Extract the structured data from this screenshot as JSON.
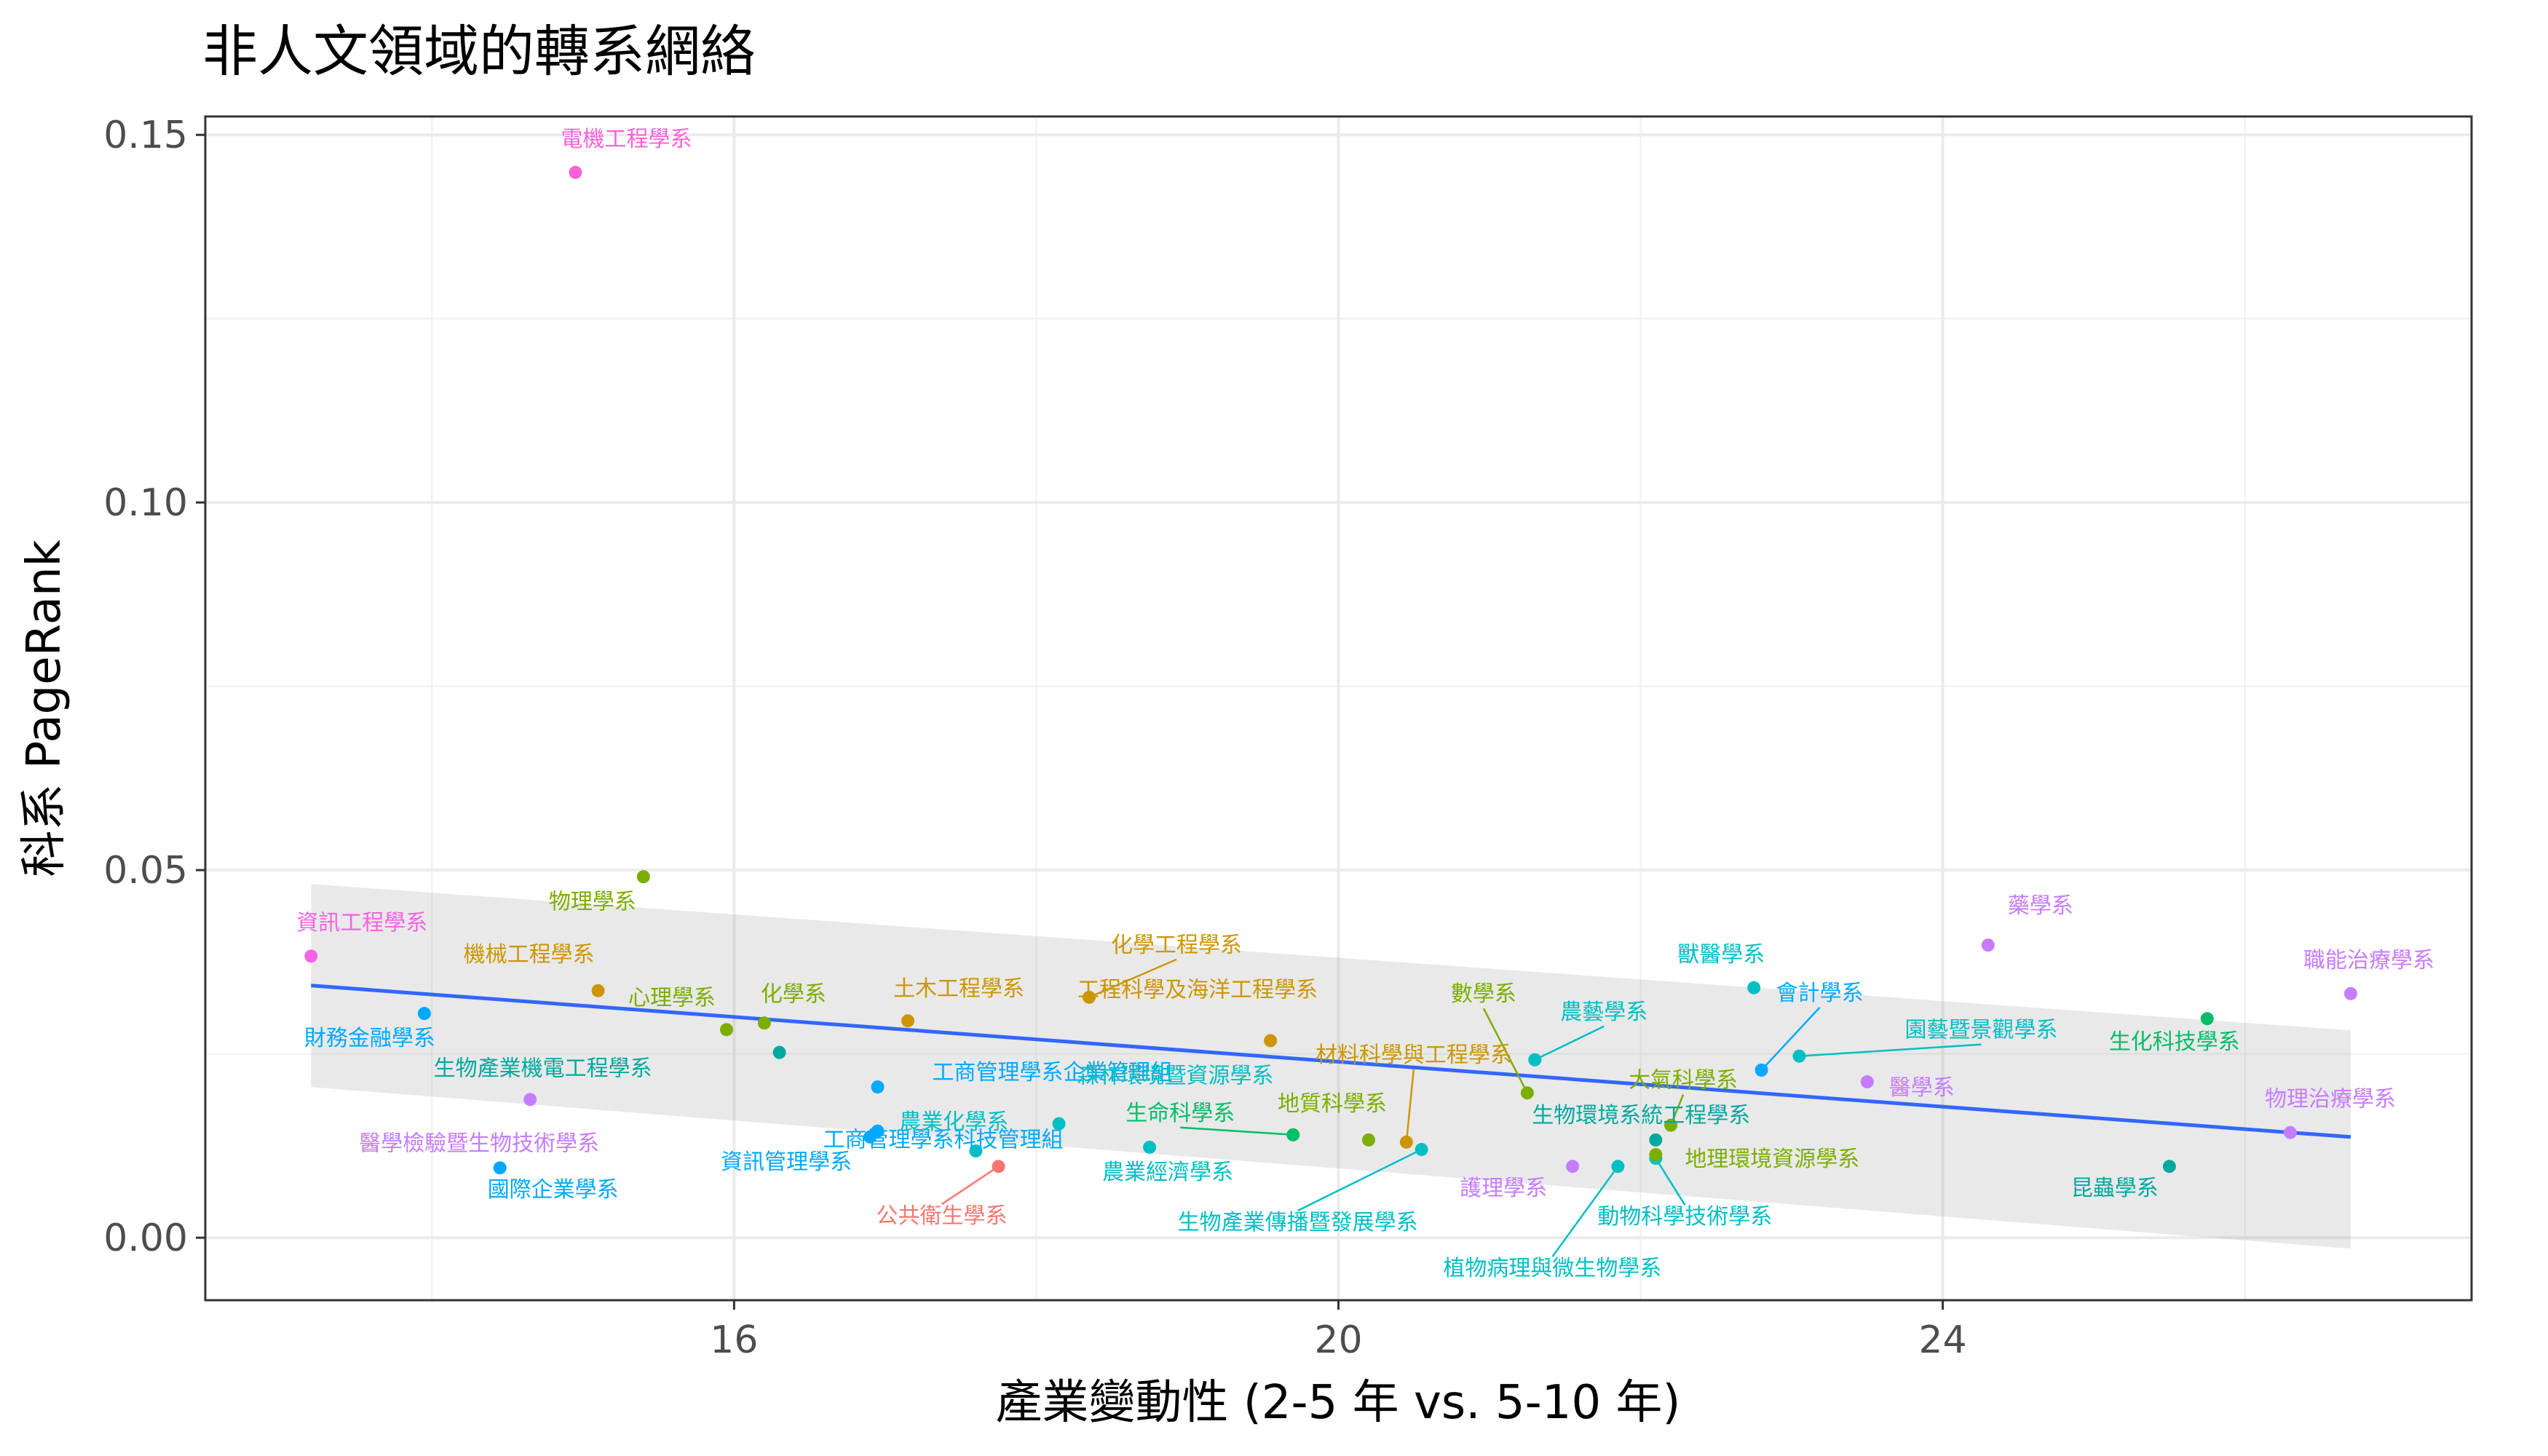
{
  "chart_data": {
    "type": "scatter",
    "title": "非人文領域的轉系網絡",
    "xlabel": "產業變動性 (2-5 年 vs. 5-10 年)",
    "ylabel": "科系 PageRank",
    "xlim": [
      12.5,
      27.5
    ],
    "ylim": [
      -0.0085,
      0.1525
    ],
    "x_ticks": [
      16,
      20,
      24
    ],
    "y_ticks": [
      0.0,
      0.05,
      0.1,
      0.15
    ],
    "x_tick_labels": [
      "16",
      "20",
      "24"
    ],
    "y_tick_labels": [
      "0.00",
      "0.05",
      "0.10",
      "0.15"
    ],
    "grid": true,
    "legend": "none",
    "trend": {
      "method": "linear",
      "x": [
        13.2,
        26.7
      ],
      "y": [
        0.0343,
        0.0137
      ],
      "band_lower": [
        0.0205,
        -0.0015
      ],
      "band_upper": [
        0.0481,
        0.0282
      ],
      "line_color": "#3366ff",
      "band_color": "#999999"
    },
    "points": [
      {
        "label": "電機工程學系",
        "x": 14.95,
        "y": 0.1449,
        "color": "#fb61d7"
      },
      {
        "label": "資訊工程學系",
        "x": 13.2,
        "y": 0.0383,
        "color": "#f564e3"
      },
      {
        "label": "物理學系",
        "x": 15.4,
        "y": 0.0491,
        "color": "#7cae00"
      },
      {
        "label": "機械工程學系",
        "x": 15.1,
        "y": 0.0336,
        "color": "#cd9600"
      },
      {
        "label": "財務金融學系",
        "x": 13.95,
        "y": 0.0305,
        "color": "#00a9ff"
      },
      {
        "label": "心理學系",
        "x": 15.95,
        "y": 0.0283,
        "color": "#7cae00"
      },
      {
        "label": "化學系",
        "x": 16.2,
        "y": 0.0292,
        "color": "#7cae00"
      },
      {
        "label": "生物產業機電工程學系",
        "x": 16.3,
        "y": 0.0252,
        "color": "#00a9a0"
      },
      {
        "label": "土木工程學系",
        "x": 17.15,
        "y": 0.0295,
        "color": "#cd9600"
      },
      {
        "label": "化學工程學系",
        "x": 18.35,
        "y": 0.0327,
        "color": "#cd9600"
      },
      {
        "label": "工商管理學系企業管理組",
        "x": 16.95,
        "y": 0.0205,
        "color": "#00a9ff"
      },
      {
        "label": "工商管理學系科技管理組",
        "x": 16.95,
        "y": 0.0145,
        "color": "#00a9ff"
      },
      {
        "label": "資訊管理學系",
        "x": 16.9,
        "y": 0.0137,
        "color": "#00a9ff"
      },
      {
        "label": "國際企業學系",
        "x": 14.45,
        "y": 0.0095,
        "color": "#00a9ff"
      },
      {
        "label": "醫學檢驗暨生物技術學系",
        "x": 14.65,
        "y": 0.0188,
        "color": "#c77cff"
      },
      {
        "label": "農業化學系",
        "x": 17.6,
        "y": 0.0118,
        "color": "#00bfc4"
      },
      {
        "label": "公共衛生學系",
        "x": 17.75,
        "y": 0.0097,
        "color": "#f8766d"
      },
      {
        "label": "森林環境暨資源學系",
        "x": 18.15,
        "y": 0.0155,
        "color": "#00bfc4"
      },
      {
        "label": "農業經濟學系",
        "x": 18.75,
        "y": 0.0123,
        "color": "#00bfc4"
      },
      {
        "label": "工程科學及海洋工程學系",
        "x": 19.55,
        "y": 0.0268,
        "color": "#cd9600"
      },
      {
        "label": "生命科學系",
        "x": 19.7,
        "y": 0.014,
        "color": "#00be67"
      },
      {
        "label": "地質科學系",
        "x": 20.2,
        "y": 0.0133,
        "color": "#7cae00"
      },
      {
        "label": "材料科學與工程學系",
        "x": 20.45,
        "y": 0.013,
        "color": "#cd9600"
      },
      {
        "label": "生物產業傳播暨發展學系",
        "x": 20.55,
        "y": 0.012,
        "color": "#00bfc4"
      },
      {
        "label": "數學系",
        "x": 21.25,
        "y": 0.0197,
        "color": "#7cae00"
      },
      {
        "label": "農藝學系",
        "x": 21.3,
        "y": 0.0242,
        "color": "#00bfc4"
      },
      {
        "label": "生物環境系統工程學系",
        "x": 22.1,
        "y": 0.0133,
        "color": "#00a9a0"
      },
      {
        "label": "護理學系",
        "x": 21.55,
        "y": 0.0097,
        "color": "#c77cff"
      },
      {
        "label": "植物病理與微生物學系",
        "x": 21.85,
        "y": 0.0097,
        "color": "#00bfc4"
      },
      {
        "label": "動物科學技術學系",
        "x": 22.1,
        "y": 0.0108,
        "color": "#00bfc4"
      },
      {
        "label": "大氣科學系",
        "x": 22.2,
        "y": 0.0153,
        "color": "#7cae00"
      },
      {
        "label": "地理環境資源學系",
        "x": 22.1,
        "y": 0.0113,
        "color": "#7cae00"
      },
      {
        "label": "獸醫學系",
        "x": 22.75,
        "y": 0.034,
        "color": "#00bfc4"
      },
      {
        "label": "會計學系",
        "x": 22.8,
        "y": 0.0228,
        "color": "#00a9ff"
      },
      {
        "label": "園藝暨景觀學系",
        "x": 23.05,
        "y": 0.0247,
        "color": "#00bfc4"
      },
      {
        "label": "醫學系",
        "x": 23.5,
        "y": 0.0212,
        "color": "#c77cff"
      },
      {
        "label": "藥學系",
        "x": 24.3,
        "y": 0.0398,
        "color": "#c77cff"
      },
      {
        "label": "生化科技學系",
        "x": 25.75,
        "y": 0.0298,
        "color": "#00be67"
      },
      {
        "label": "昆蟲學系",
        "x": 25.5,
        "y": 0.0097,
        "color": "#00a9a0"
      },
      {
        "label": "職能治療學系",
        "x": 26.7,
        "y": 0.0332,
        "color": "#c77cff"
      },
      {
        "label": "物理治療學系",
        "x": 26.3,
        "y": 0.0143,
        "color": "#c77cff"
      }
    ]
  }
}
